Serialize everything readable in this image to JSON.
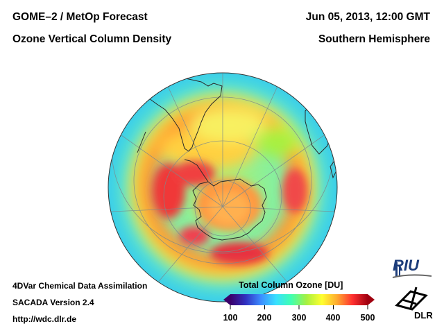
{
  "header": {
    "title_line1": "GOME–2 / MetOp Forecast",
    "title_line2": "Ozone Vertical Column Density",
    "date": "Jun 05, 2013, 12:00 GMT",
    "region": "Southern Hemisphere"
  },
  "footer": {
    "method": "4DVar Chemical Data Assimilation",
    "version": "SACADA Version 2.4",
    "url": "http://wdc.dlr.de"
  },
  "colorbar": {
    "title": "Total Column Ozone [DU]",
    "min": 100,
    "max": 500,
    "ticks": [
      "100",
      "200",
      "300",
      "400",
      "500"
    ],
    "stops": [
      "#3a006a",
      "#3030c0",
      "#3c8cff",
      "#38e0ff",
      "#40ffb0",
      "#a8f040",
      "#ffff30",
      "#ffaa30",
      "#ff3030",
      "#a00010"
    ]
  },
  "logos": {
    "riu": "RIU",
    "dlr": "DLR"
  },
  "chart_data": {
    "type": "heatmap",
    "projection": "orthographic, south-pole centred",
    "quantity": "Total Column Ozone",
    "unit": "DU",
    "colorbar_range": [
      100,
      500
    ],
    "regions": [
      {
        "name": "tropics / outer disc",
        "ozone_du": 260
      },
      {
        "name": "mid-latitude collar ring",
        "ozone_du": 420
      },
      {
        "name": "Antarctic interior",
        "ozone_du": 300
      },
      {
        "name": "south-west maximum",
        "ozone_du": 460
      },
      {
        "name": "south-east maximum",
        "ozone_du": 455
      },
      {
        "name": "north-west maximum",
        "ozone_du": 460
      }
    ]
  }
}
